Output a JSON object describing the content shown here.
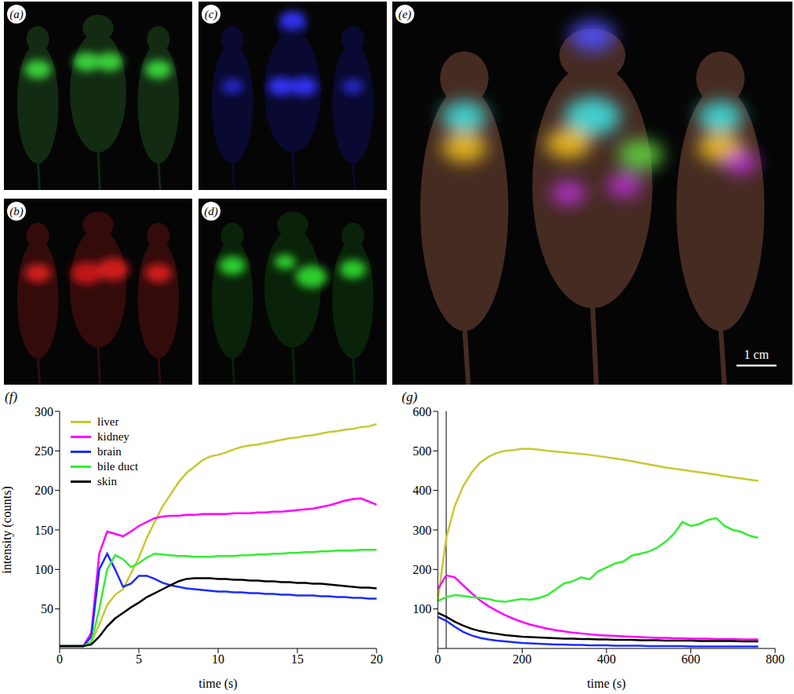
{
  "images": [
    {
      "title": "(a)"
    },
    {
      "title": "(b)"
    },
    {
      "title": "(c)"
    },
    {
      "title": "(d)"
    },
    {
      "title": "(e)",
      "scale_bar": "1 cm"
    }
  ],
  "chart_data": [
    {
      "type": "line",
      "title": "(f)",
      "x_label": "time (s)",
      "y_label": "intensity (counts)",
      "legend": "upper left",
      "xlim": [
        0,
        20
      ],
      "xticks": [
        0,
        5,
        10,
        15,
        20
      ],
      "ylim": [
        0,
        300
      ],
      "yticks": [
        50,
        100,
        150,
        200,
        250,
        300
      ],
      "x": [
        0,
        0.5,
        1,
        1.5,
        2,
        2.5,
        3,
        3.5,
        4,
        4.5,
        5,
        5.5,
        6,
        6.5,
        7,
        7.5,
        8,
        8.5,
        9,
        9.5,
        10,
        10.5,
        11,
        11.5,
        12,
        12.5,
        13,
        13.5,
        14,
        14.5,
        15,
        15.5,
        16,
        16.5,
        17,
        17.5,
        18,
        18.5,
        19,
        19.5,
        20
      ],
      "series": [
        {
          "name": "liver",
          "color": "#c8c832",
          "values": [
            3,
            3,
            3,
            4,
            8,
            30,
            55,
            68,
            75,
            95,
            115,
            140,
            160,
            180,
            195,
            210,
            222,
            230,
            238,
            243,
            245,
            248,
            252,
            255,
            257,
            258,
            260,
            262,
            264,
            266,
            267,
            269,
            270,
            272,
            274,
            275,
            277,
            278,
            280,
            281,
            284
          ]
        },
        {
          "name": "kidney",
          "color": "#ff00ff",
          "values": [
            3,
            3,
            3,
            3,
            20,
            120,
            148,
            145,
            142,
            148,
            155,
            160,
            165,
            167,
            168,
            168,
            169,
            169,
            170,
            170,
            170,
            170,
            171,
            171,
            171,
            172,
            172,
            173,
            173,
            174,
            175,
            176,
            177,
            179,
            181,
            184,
            187,
            189,
            190,
            186,
            182
          ]
        },
        {
          "name": "brain",
          "color": "#1a2bff",
          "values": [
            3,
            3,
            3,
            3,
            15,
            100,
            120,
            100,
            78,
            82,
            92,
            92,
            88,
            83,
            80,
            78,
            76,
            75,
            74,
            73,
            72,
            72,
            71,
            71,
            70,
            70,
            69,
            69,
            68,
            68,
            67,
            67,
            67,
            66,
            66,
            65,
            65,
            64,
            64,
            63,
            63
          ]
        },
        {
          "name": "bile duct",
          "color": "#33ee33",
          "values": [
            3,
            3,
            3,
            3,
            8,
            50,
            100,
            118,
            113,
            103,
            108,
            115,
            120,
            119,
            118,
            117,
            117,
            116,
            116,
            116,
            117,
            117,
            117,
            118,
            118,
            119,
            119,
            120,
            120,
            121,
            121,
            122,
            122,
            123,
            123,
            124,
            124,
            124,
            125,
            125,
            125
          ]
        },
        {
          "name": "skin",
          "color": "#000000",
          "values": [
            3,
            3,
            3,
            3,
            5,
            15,
            28,
            38,
            45,
            52,
            58,
            65,
            70,
            75,
            80,
            85,
            88,
            89,
            89,
            89,
            88,
            88,
            87,
            87,
            86,
            86,
            85,
            85,
            84,
            84,
            83,
            83,
            82,
            82,
            81,
            80,
            79,
            78,
            77,
            77,
            76
          ]
        }
      ]
    },
    {
      "type": "line",
      "title": "(g)",
      "x_label": "time (s)",
      "xlim": [
        0,
        800
      ],
      "xticks": [
        0,
        200,
        400,
        600,
        800
      ],
      "ylim": [
        0,
        600
      ],
      "yticks": [
        100,
        200,
        300,
        400,
        500,
        600
      ],
      "reference_x": 20,
      "x": [
        0,
        20,
        40,
        60,
        80,
        100,
        120,
        140,
        160,
        180,
        200,
        220,
        240,
        260,
        280,
        300,
        320,
        340,
        360,
        380,
        400,
        420,
        440,
        460,
        480,
        500,
        520,
        540,
        560,
        580,
        600,
        620,
        640,
        660,
        680,
        700,
        720,
        740,
        760
      ],
      "series": [
        {
          "name": "liver",
          "color": "#c8c832",
          "values": [
            120,
            280,
            360,
            410,
            445,
            470,
            485,
            495,
            500,
            502,
            505,
            505,
            503,
            500,
            498,
            496,
            494,
            492,
            490,
            487,
            484,
            481,
            478,
            474,
            470,
            466,
            462,
            458,
            455,
            452,
            449,
            446,
            443,
            440,
            436,
            433,
            430,
            427,
            424
          ]
        },
        {
          "name": "kidney",
          "color": "#ff00ff",
          "values": [
            150,
            185,
            180,
            160,
            140,
            122,
            107,
            95,
            84,
            75,
            67,
            60,
            55,
            50,
            46,
            43,
            40,
            38,
            36,
            34,
            33,
            32,
            31,
            30,
            29,
            28,
            27,
            27,
            26,
            26,
            25,
            25,
            25,
            24,
            24,
            24,
            23,
            23,
            23
          ]
        },
        {
          "name": "brain",
          "color": "#1a2bff",
          "values": [
            80,
            70,
            55,
            42,
            33,
            27,
            23,
            20,
            18,
            16,
            14,
            13,
            12,
            11,
            10,
            10,
            9,
            9,
            8,
            8,
            8,
            7,
            7,
            7,
            7,
            6,
            6,
            6,
            6,
            6,
            5,
            5,
            5,
            5,
            5,
            5,
            5,
            5,
            5
          ]
        },
        {
          "name": "bile duct",
          "color": "#33ee33",
          "values": [
            120,
            130,
            135,
            133,
            130,
            128,
            125,
            120,
            118,
            122,
            125,
            123,
            128,
            135,
            150,
            165,
            170,
            180,
            175,
            195,
            205,
            215,
            220,
            235,
            240,
            245,
            255,
            270,
            290,
            320,
            310,
            315,
            325,
            330,
            310,
            300,
            295,
            285,
            280
          ]
        },
        {
          "name": "skin",
          "color": "#000000",
          "values": [
            90,
            80,
            68,
            58,
            50,
            44,
            40,
            37,
            34,
            32,
            30,
            29,
            28,
            27,
            26,
            25,
            25,
            24,
            24,
            23,
            23,
            22,
            22,
            22,
            21,
            21,
            21,
            20,
            20,
            20,
            20,
            19,
            19,
            19,
            19,
            19,
            18,
            18,
            18
          ]
        }
      ]
    }
  ]
}
